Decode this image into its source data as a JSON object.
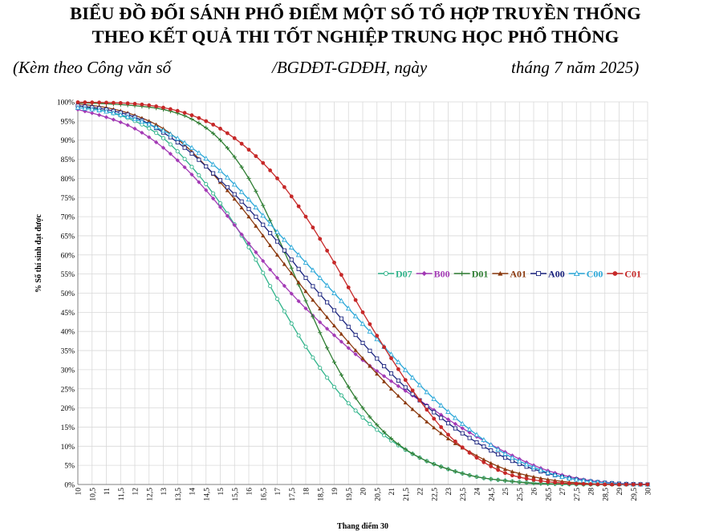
{
  "header": {
    "title_line1": "BIỂU ĐỒ ĐỐI SÁNH PHỔ ĐIỂM MỘT SỐ TỔ HỢP TRUYỀN THỐNG",
    "title_line2": "THEO KẾT QUẢ THI TỐT NGHIỆP TRUNG HỌC PHỔ THÔNG",
    "subtitle_part1": "(Kèm theo Công văn số",
    "subtitle_part2": "/BGDĐT-GDĐH, ngày",
    "subtitle_part3": "tháng 7 năm 2025)"
  },
  "chart_data": {
    "type": "line",
    "title": "",
    "xlabel": "Thang điểm 30",
    "ylabel": "% Số thí sinh đạt được",
    "xlim": [
      10,
      30
    ],
    "ylim": [
      0,
      100
    ],
    "x_step": 0.25,
    "x_tick_labels": [
      "10",
      "10,5",
      "11",
      "11,5",
      "12",
      "12,5",
      "13",
      "13,5",
      "14",
      "14,5",
      "15",
      "15,5",
      "16",
      "16,5",
      "17",
      "17,5",
      "18",
      "18,5",
      "19",
      "19,5",
      "20",
      "20,5",
      "21",
      "21,5",
      "22",
      "22,5",
      "23",
      "23,5",
      "24",
      "24,5",
      "25",
      "25,5",
      "26",
      "26,5",
      "27",
      "27,5",
      "28",
      "28,5",
      "29",
      "29,5",
      "30"
    ],
    "y_tick_labels": [
      "0%",
      "5%",
      "10%",
      "15%",
      "20%",
      "25%",
      "30%",
      "35%",
      "40%",
      "45%",
      "50%",
      "55%",
      "60%",
      "65%",
      "70%",
      "75%",
      "80%",
      "85%",
      "90%",
      "95%",
      "100%"
    ],
    "legend_position": "center-right",
    "series": [
      {
        "name": "D07",
        "color": "#2fb38a",
        "marker": "circle-open",
        "x": [
          10,
          11,
          12,
          13,
          14,
          15,
          16,
          17,
          18,
          19,
          20,
          21,
          22,
          23,
          24,
          25,
          26,
          27,
          28,
          29,
          30
        ],
        "values": [
          99,
          97.5,
          95,
          90.5,
          83,
          73.5,
          62,
          48.5,
          36,
          25.5,
          17.5,
          11.5,
          7,
          4,
          2,
          1,
          0.4,
          0.1,
          0,
          0,
          0
        ]
      },
      {
        "name": "B00",
        "color": "#a33ab5",
        "marker": "diamond",
        "x": [
          10,
          11,
          12,
          13,
          14,
          15,
          16,
          17,
          18,
          19,
          20,
          21,
          22,
          23,
          24,
          25,
          26,
          27,
          28,
          29,
          30
        ],
        "values": [
          98,
          96,
          93,
          88,
          81,
          72.5,
          63,
          54,
          46,
          39,
          32.5,
          27,
          22,
          17,
          12.5,
          8.5,
          5,
          2.5,
          1,
          0.3,
          0
        ]
      },
      {
        "name": "D01",
        "color": "#2e7d32",
        "marker": "plus",
        "x": [
          10,
          11,
          12,
          13,
          14,
          15,
          16,
          17,
          18,
          19,
          20,
          21,
          22,
          23,
          24,
          25,
          26,
          27,
          28,
          29,
          30
        ],
        "values": [
          99.8,
          99.5,
          99,
          98,
          95.5,
          90,
          80,
          65,
          48,
          32,
          20,
          12,
          7,
          4,
          2,
          1,
          0.3,
          0.1,
          0,
          0,
          0
        ]
      },
      {
        "name": "A01",
        "color": "#8b3a0f",
        "marker": "triangle",
        "x": [
          10,
          11,
          12,
          13,
          14,
          15,
          16,
          17,
          18,
          19,
          20,
          21,
          22,
          23,
          24,
          25,
          26,
          27,
          28,
          29,
          30
        ],
        "values": [
          99.5,
          98.5,
          96.5,
          93,
          87,
          79,
          70,
          60,
          50.5,
          41.5,
          33,
          25,
          18,
          12,
          7.5,
          4,
          2,
          0.8,
          0.2,
          0,
          0
        ]
      },
      {
        "name": "A00",
        "color": "#1a237e",
        "marker": "square-open",
        "x": [
          10,
          11,
          12,
          13,
          14,
          15,
          16,
          17,
          18,
          19,
          20,
          21,
          22,
          23,
          24,
          25,
          26,
          27,
          28,
          29,
          30
        ],
        "values": [
          99,
          98,
          96,
          92,
          86.5,
          79.5,
          72,
          63.5,
          54,
          45.5,
          37,
          29,
          22,
          16,
          11,
          7,
          4,
          2,
          0.8,
          0.2,
          0
        ]
      },
      {
        "name": "C00",
        "color": "#2aa7d8",
        "marker": "triangle-open",
        "x": [
          10,
          11,
          12,
          13,
          14,
          15,
          16,
          17,
          18,
          19,
          20,
          21,
          22,
          23,
          24,
          25,
          26,
          27,
          28,
          29,
          30
        ],
        "values": [
          98.5,
          97.5,
          95.5,
          92.5,
          88,
          82,
          74.5,
          66,
          58,
          50,
          42,
          34,
          26,
          19,
          13,
          8,
          4.5,
          2,
          0.8,
          0.2,
          0
        ]
      },
      {
        "name": "C01",
        "color": "#c62828",
        "marker": "circle",
        "x": [
          10,
          11,
          12,
          13,
          14,
          15,
          16,
          17,
          18,
          19,
          20,
          21,
          22,
          23,
          24,
          25,
          26,
          27,
          28,
          29,
          30
        ],
        "values": [
          99.9,
          99.8,
          99.5,
          98.5,
          96.5,
          93,
          87.5,
          80,
          70,
          58,
          45,
          33,
          22,
          13,
          7,
          3,
          1.2,
          0.4,
          0.1,
          0,
          0
        ]
      }
    ]
  }
}
